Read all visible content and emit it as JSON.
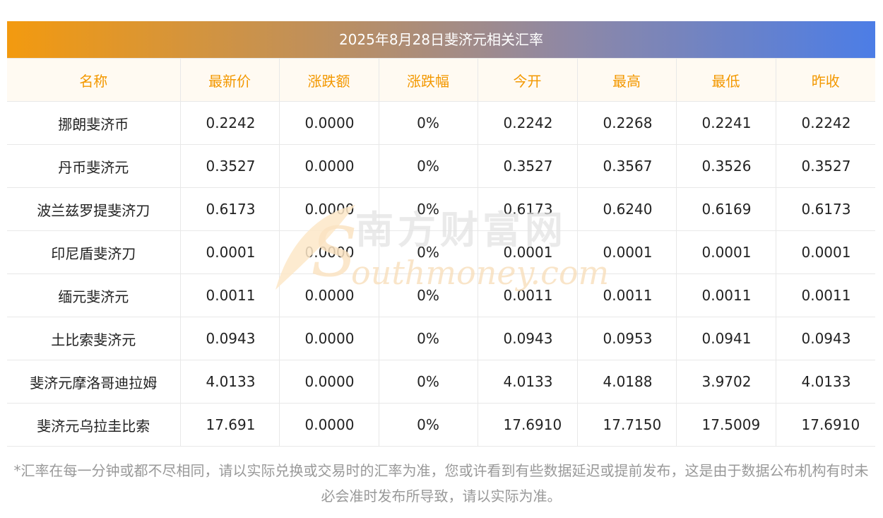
{
  "title": "2025年8月28日斐济元相关汇率",
  "columns": [
    "名称",
    "最新价",
    "涨跌额",
    "涨跌幅",
    "今开",
    "最高",
    "最低",
    "昨收"
  ],
  "rows": [
    [
      "挪朗斐济币",
      "0.2242",
      "0.0000",
      "0%",
      "0.2242",
      "0.2268",
      "0.2241",
      "0.2242"
    ],
    [
      "丹币斐济元",
      "0.3527",
      "0.0000",
      "0%",
      "0.3527",
      "0.3567",
      "0.3526",
      "0.3527"
    ],
    [
      "波兰兹罗提斐济刀",
      "0.6173",
      "0.0000",
      "0%",
      "0.6173",
      "0.6240",
      "0.6169",
      "0.6173"
    ],
    [
      "印尼盾斐济刀",
      "0.0001",
      "0.0000",
      "0%",
      "0.0001",
      "0.0001",
      "0.0001",
      "0.0001"
    ],
    [
      "缅元斐济元",
      "0.0011",
      "0.0000",
      "0%",
      "0.0011",
      "0.0011",
      "0.0011",
      "0.0011"
    ],
    [
      "土比索斐济元",
      "0.0943",
      "0.0000",
      "0%",
      "0.0943",
      "0.0953",
      "0.0941",
      "0.0943"
    ],
    [
      "斐济元摩洛哥迪拉姆",
      "4.0133",
      "0.0000",
      "0%",
      "4.0133",
      "4.0188",
      "3.9702",
      "4.0133"
    ],
    [
      "斐济元乌拉圭比索",
      "17.691",
      "0.0000",
      "0%",
      "17.6910",
      "17.7150",
      "17.5009",
      "17.6910"
    ]
  ],
  "watermark": {
    "cn": "南方财富网",
    "en": "outhmoney.com",
    "initial": "S"
  },
  "note": "*汇率在每一分钟或都不尽相同，请以实际兑换或交易时的汇率为准，您或许看到有些数据延迟或提前发布，这是由于数据公布机构有时未必会准时发布所导致，请以实际为准。",
  "colors": {
    "header_text": "#f39800",
    "header_bg": "#fffaf2",
    "note_text": "#999999"
  }
}
